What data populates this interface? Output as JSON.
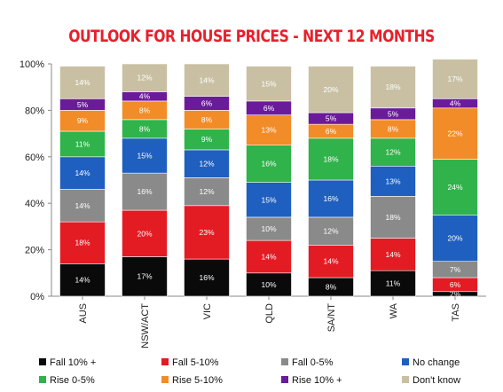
{
  "chart_data": {
    "type": "bar",
    "stacked": true,
    "title": "OUTLOOK FOR HOUSE PRICES - NEXT 12 MONTHS",
    "categories": [
      "AUS",
      "NSW/ACT",
      "VIC",
      "QLD",
      "SA/NT",
      "WA",
      "TAS"
    ],
    "ylim": [
      0,
      100
    ],
    "yticks": [
      "0%",
      "20%",
      "40%",
      "60%",
      "80%",
      "100%"
    ],
    "ytick_values": [
      0,
      20,
      40,
      60,
      80,
      100
    ],
    "grid": false,
    "legend_position": "bottom",
    "series": [
      {
        "name": "Fall 10% +",
        "color": "#0a0a0a",
        "values": [
          14,
          17,
          16,
          10,
          8,
          11,
          2
        ],
        "labels": [
          "14%",
          "17%",
          "16%",
          "10%",
          "8%",
          "11%",
          "2%"
        ]
      },
      {
        "name": "Fall 5-10%",
        "color": "#e31b23",
        "values": [
          18,
          20,
          23,
          14,
          14,
          14,
          6
        ],
        "labels": [
          "18%",
          "20%",
          "23%",
          "14%",
          "14%",
          "14%",
          "6%"
        ]
      },
      {
        "name": "Fall 0-5%",
        "color": "#8a8a8a",
        "values": [
          14,
          16,
          12,
          10,
          12,
          18,
          7
        ],
        "labels": [
          "14%",
          "16%",
          "12%",
          "10%",
          "12%",
          "18%",
          "7%"
        ]
      },
      {
        "name": "No change",
        "color": "#1f5fbf",
        "values": [
          14,
          15,
          12,
          15,
          16,
          13,
          20
        ],
        "labels": [
          "14%",
          "15%",
          "12%",
          "15%",
          "16%",
          "13%",
          "20%"
        ]
      },
      {
        "name": "Rise 0-5%",
        "color": "#2fb34a",
        "values": [
          11,
          8,
          9,
          16,
          18,
          12,
          24
        ],
        "labels": [
          "11%",
          "8%",
          "9%",
          "16%",
          "18%",
          "12%",
          "24%"
        ]
      },
      {
        "name": "Rise 5-10%",
        "color": "#f28c28",
        "values": [
          9,
          8,
          8,
          13,
          6,
          8,
          22
        ],
        "labels": [
          "9%",
          "8%",
          "8%",
          "13%",
          "6%",
          "8%",
          "22%"
        ]
      },
      {
        "name": "Rise 10% +",
        "color": "#6a1b9a",
        "values": [
          5,
          4,
          6,
          6,
          5,
          5,
          4
        ],
        "labels": [
          "5%",
          "4%",
          "6%",
          "6%",
          "5%",
          "5%",
          "4%"
        ]
      },
      {
        "name": "Don't know",
        "color": "#c9c0a3",
        "values": [
          14,
          12,
          14,
          15,
          20,
          18,
          17
        ],
        "labels": [
          "14%",
          "12%",
          "14%",
          "15%",
          "20%",
          "18%",
          "17%"
        ]
      }
    ]
  }
}
